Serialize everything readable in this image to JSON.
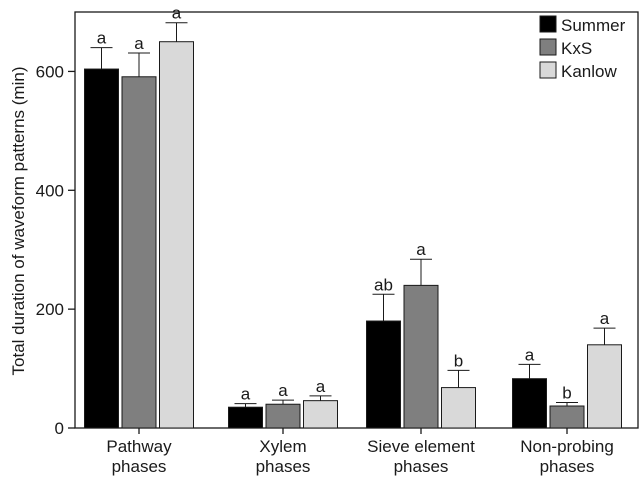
{
  "chart_data": {
    "type": "bar",
    "ylabel": "Total duration of waveform patterns (min)",
    "xlabel": "",
    "ylim": [
      0,
      700
    ],
    "yticks": [
      0,
      200,
      400,
      600
    ],
    "categories": [
      [
        "Pathway",
        "phases"
      ],
      [
        "Xylem",
        "phases"
      ],
      [
        "Sieve element",
        "phases"
      ],
      [
        "Non-probing",
        "phases"
      ]
    ],
    "series": [
      {
        "name": "Summer",
        "color": "#000000",
        "values": [
          604,
          35,
          180,
          83
        ],
        "errors": [
          36,
          6,
          45,
          24
        ],
        "letters": [
          "a",
          "a",
          "ab",
          "a"
        ]
      },
      {
        "name": "KxS",
        "color": "#7f7f7f",
        "values": [
          591,
          40,
          240,
          37
        ],
        "errors": [
          40,
          7,
          44,
          6
        ],
        "letters": [
          "a",
          "a",
          "a",
          "b"
        ]
      },
      {
        "name": "Kanlow",
        "color": "#d9d9d9",
        "values": [
          650,
          46,
          68,
          140
        ],
        "errors": [
          32,
          8,
          29,
          28
        ],
        "letters": [
          "a",
          "a",
          "b",
          "a"
        ]
      }
    ],
    "legend_position": "top-right",
    "grid": false
  }
}
